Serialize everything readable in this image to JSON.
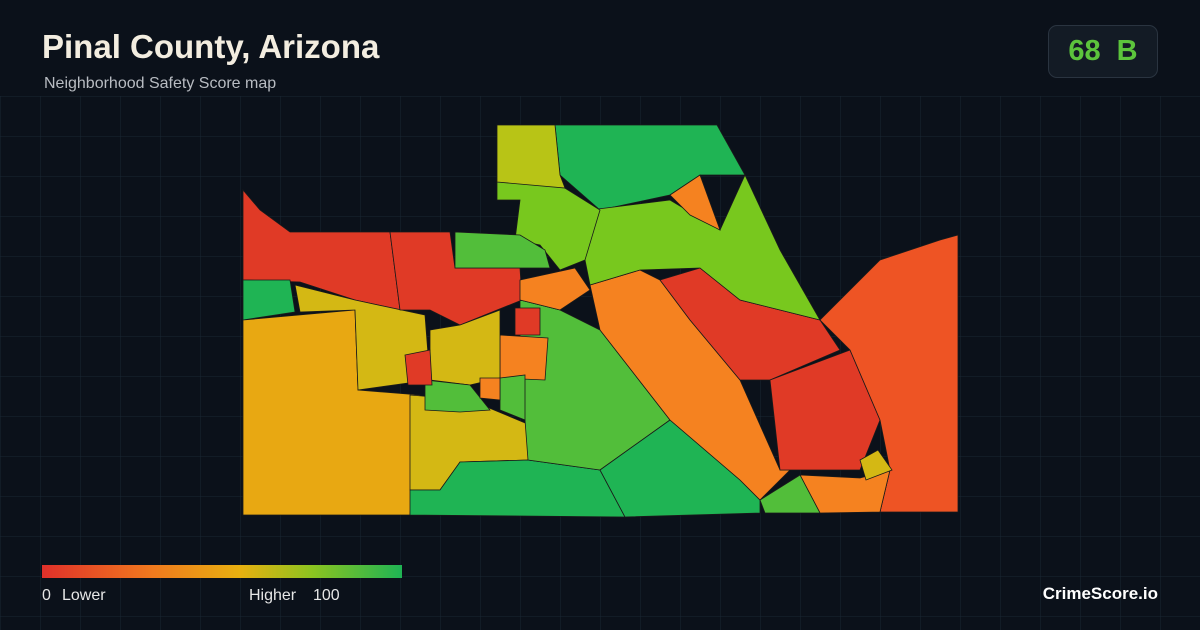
{
  "header": {
    "title": "Pinal County, Arizona",
    "subtitle": "Neighborhood Safety Score map"
  },
  "score": {
    "value": "68",
    "grade": "B"
  },
  "legend": {
    "min": "0",
    "min_label": "Lower",
    "max_label": "Higher",
    "max": "100"
  },
  "brand": "CrimeScore.io"
}
